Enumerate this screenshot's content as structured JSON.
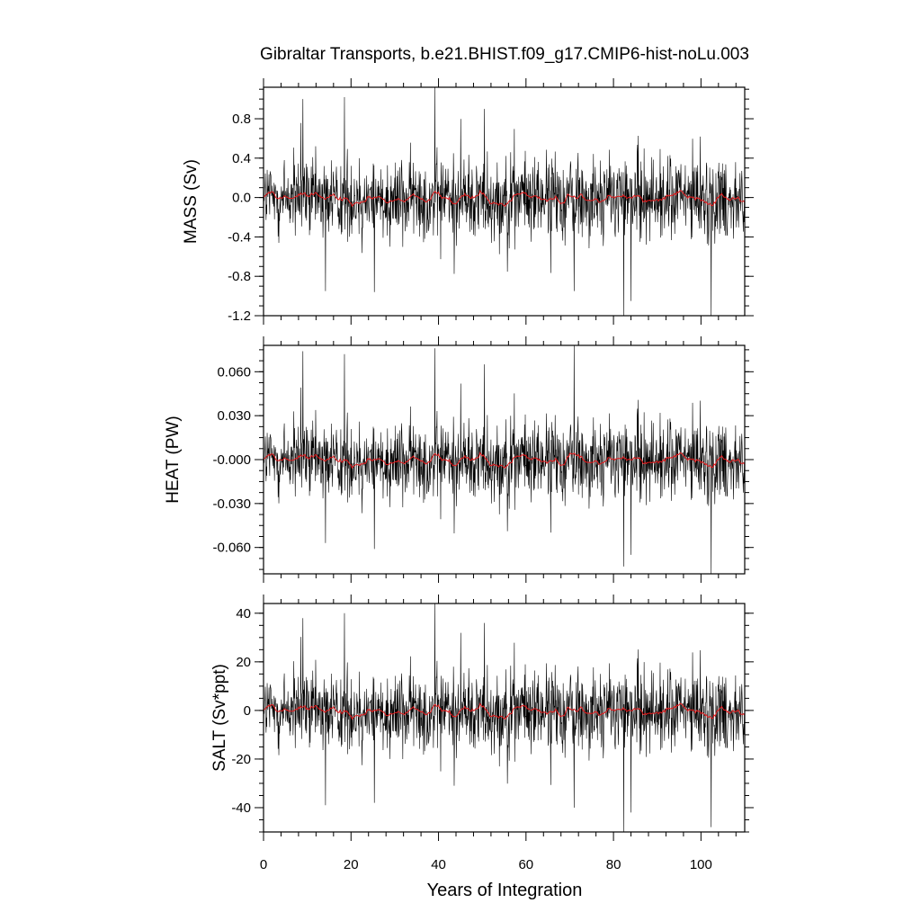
{
  "chart_data": {
    "type": "line",
    "title": "Gibraltar Transports, b.e21.BHIST.f09_g17.CMIP6-hist-noLu.003",
    "xlabel": "Years of Integration",
    "xlim": [
      0,
      110
    ],
    "xticks": [
      0,
      20,
      40,
      60,
      80,
      100
    ],
    "xtick_labels": [
      "0",
      "20",
      "40",
      "60",
      "80",
      "100"
    ],
    "grid": false,
    "raw_color": "#000000",
    "smooth_color": "#e41a1c",
    "panels": [
      {
        "ylabel": "MASS (Sv)",
        "ylim": [
          -1.2,
          1.12
        ],
        "yticks": [
          0.8,
          0.4,
          0.0,
          -0.4,
          -0.8,
          -1.2
        ],
        "ytick_labels": [
          "0.8",
          "0.4",
          "0.0",
          "-0.4",
          "-0.8",
          "-1.2"
        ],
        "amplitude": 0.2,
        "spikes": [
          [
            9.0,
            1.0
          ],
          [
            14.2,
            -0.95
          ],
          [
            18.5,
            1.02
          ],
          [
            25.3,
            -0.96
          ],
          [
            39.2,
            1.12
          ],
          [
            50.5,
            0.9
          ],
          [
            71.0,
            -0.95
          ],
          [
            82.3,
            -1.2
          ],
          [
            84.0,
            -1.05
          ],
          [
            102.3,
            -1.2
          ]
        ]
      },
      {
        "ylabel": "HEAT (PW)",
        "ylim": [
          -0.078,
          0.078
        ],
        "yticks": [
          0.06,
          0.03,
          0.0,
          -0.03,
          -0.06
        ],
        "ytick_labels": [
          "0.060",
          "0.030",
          "-0.000",
          "-0.030",
          "-0.060"
        ],
        "amplitude": 0.013,
        "spikes": [
          [
            9.0,
            0.074
          ],
          [
            14.2,
            -0.057
          ],
          [
            18.5,
            0.072
          ],
          [
            25.3,
            -0.061
          ],
          [
            39.2,
            0.076
          ],
          [
            50.5,
            0.065
          ],
          [
            71.0,
            0.078
          ],
          [
            82.3,
            -0.073
          ],
          [
            84.0,
            -0.065
          ],
          [
            102.3,
            -0.078
          ]
        ]
      },
      {
        "ylabel": "SALT (Sv*ppt)",
        "ylim": [
          -50,
          44
        ],
        "yticks": [
          40,
          20,
          0,
          -20,
          -40
        ],
        "ytick_labels": [
          "40",
          "20",
          "0",
          "-20",
          "-40"
        ],
        "amplitude": 8,
        "spikes": [
          [
            9.0,
            38
          ],
          [
            14.2,
            -39
          ],
          [
            18.5,
            40
          ],
          [
            25.3,
            -38
          ],
          [
            39.2,
            44
          ],
          [
            50.5,
            36
          ],
          [
            71.0,
            -40
          ],
          [
            82.3,
            -50
          ],
          [
            84.0,
            -42
          ],
          [
            102.3,
            -48
          ]
        ]
      }
    ]
  }
}
